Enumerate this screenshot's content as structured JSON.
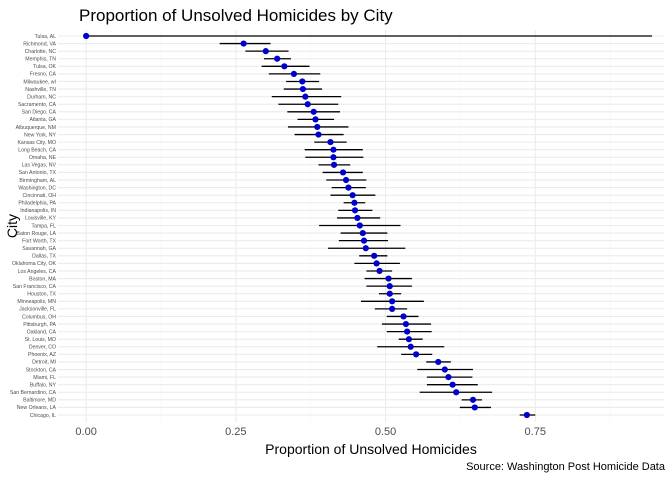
{
  "chart_data": {
    "type": "scatter",
    "title": "Proportion of Unsolved Homicides by City",
    "xlabel": "Proportion of Unsolved Homicides",
    "ylabel": "City",
    "caption": "Source: Washington Post Homicide Data",
    "xlim": [
      -0.047,
      0.965
    ],
    "xticks": [
      0.0,
      0.25,
      0.5,
      0.75
    ],
    "xtick_labels": [
      "0.00",
      "0.25",
      "0.50",
      "0.75"
    ],
    "grid": true,
    "point_color": "#0000cd",
    "errorbar_color": "#000000",
    "cities": [
      "Tulsa, AL",
      "Richmond, VA",
      "Charlotte, NC",
      "Memphis, TN",
      "Tulsa, OK",
      "Fresno, CA",
      "Milwaukee, wI",
      "Nashville, TN",
      "Durham, NC",
      "Sacramento, CA",
      "San Diego, CA",
      "Atlanta, GA",
      "Albuquerque, NM",
      "New York, NY",
      "Kansas City, MO",
      "Long Beach, CA",
      "Omaha, NE",
      "Las Vegas, NV",
      "San Antonio, TX",
      "Birmingham, AL",
      "Washington, DC",
      "Cincinnati, OH",
      "Philadelphia, PA",
      "Indianapolis, IN",
      "Louisville, KY",
      "Tampa, FL",
      "Baton Rouge, LA",
      "Fort Worth, TX",
      "Savannah, GA",
      "Dallas, TX",
      "Oklahoma City, OK",
      "Los Angeles, CA",
      "Boston, MA",
      "San Francisco, CA",
      "Houston, TX",
      "Minneapolis, MN",
      "Jacksonville, FL",
      "Columbus, OH",
      "Pittsburgh, PA",
      "Oakland, CA",
      "St. Louis, MO",
      "Denver, CO",
      "Phoenix, AZ",
      "Detroit, MI",
      "Stockton, CA",
      "Miami, FL",
      "Buffalo, NY",
      "San Bernardino, CA",
      "Baltimore, MD",
      "New Orleans, LA",
      "Chicago, IL"
    ],
    "estimate": [
      0.0,
      0.263,
      0.3,
      0.319,
      0.331,
      0.347,
      0.361,
      0.362,
      0.366,
      0.37,
      0.38,
      0.383,
      0.386,
      0.388,
      0.408,
      0.413,
      0.413,
      0.414,
      0.429,
      0.434,
      0.438,
      0.445,
      0.448,
      0.449,
      0.453,
      0.457,
      0.462,
      0.464,
      0.467,
      0.481,
      0.485,
      0.49,
      0.505,
      0.507,
      0.507,
      0.511,
      0.511,
      0.53,
      0.534,
      0.536,
      0.539,
      0.542,
      0.551,
      0.588,
      0.599,
      0.605,
      0.612,
      0.618,
      0.646,
      0.649,
      0.736
    ],
    "conf_low": [
      0.0,
      0.223,
      0.266,
      0.297,
      0.293,
      0.305,
      0.334,
      0.33,
      0.31,
      0.321,
      0.336,
      0.353,
      0.337,
      0.348,
      0.381,
      0.365,
      0.366,
      0.388,
      0.395,
      0.401,
      0.41,
      0.408,
      0.43,
      0.421,
      0.419,
      0.389,
      0.425,
      0.422,
      0.404,
      0.456,
      0.448,
      0.468,
      0.465,
      0.468,
      0.489,
      0.459,
      0.482,
      0.502,
      0.494,
      0.502,
      0.522,
      0.486,
      0.526,
      0.568,
      0.553,
      0.569,
      0.569,
      0.557,
      0.627,
      0.624,
      0.724
    ],
    "conf_high": [
      0.945,
      0.308,
      0.338,
      0.342,
      0.373,
      0.391,
      0.389,
      0.394,
      0.426,
      0.421,
      0.424,
      0.414,
      0.438,
      0.43,
      0.435,
      0.462,
      0.463,
      0.441,
      0.462,
      0.468,
      0.467,
      0.483,
      0.466,
      0.478,
      0.491,
      0.525,
      0.503,
      0.504,
      0.533,
      0.503,
      0.524,
      0.511,
      0.544,
      0.544,
      0.526,
      0.564,
      0.536,
      0.555,
      0.576,
      0.577,
      0.562,
      0.598,
      0.578,
      0.609,
      0.646,
      0.645,
      0.654,
      0.678,
      0.661,
      0.676,
      0.75
    ]
  }
}
